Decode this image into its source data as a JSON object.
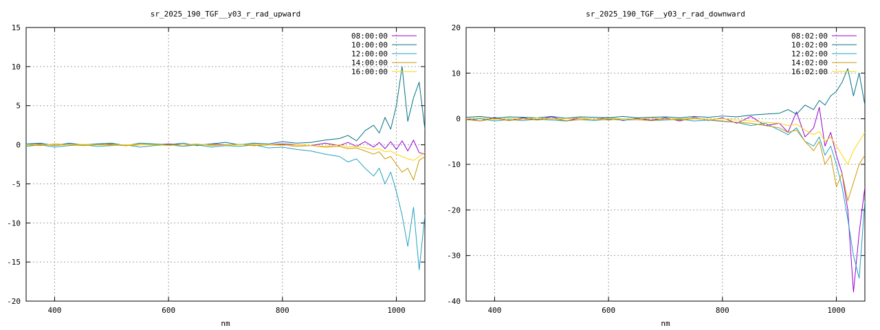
{
  "chart_data": [
    {
      "type": "line",
      "title": "sr_2025_190_TGF__y03_r_rad_upward",
      "xlabel": "nm",
      "ylabel": "",
      "xlim": [
        350,
        1050
      ],
      "ylim": [
        -20,
        15
      ],
      "xticks": [
        400,
        600,
        800,
        1000
      ],
      "yticks": [
        -20,
        -15,
        -10,
        -5,
        0,
        5,
        10,
        15
      ],
      "grid": true,
      "legend_position": "top-right",
      "x": [
        350,
        375,
        400,
        425,
        450,
        475,
        500,
        525,
        550,
        575,
        600,
        625,
        650,
        675,
        700,
        725,
        750,
        775,
        800,
        825,
        850,
        875,
        900,
        915,
        930,
        945,
        960,
        970,
        980,
        990,
        1000,
        1010,
        1020,
        1030,
        1040,
        1050
      ],
      "series": [
        {
          "name": "08:00:00",
          "color": "#9400d3",
          "values": [
            0,
            0.1,
            -0.1,
            0.05,
            0,
            0.1,
            0,
            -0.1,
            0.05,
            0,
            0.1,
            0,
            -0.05,
            0.1,
            0,
            0.05,
            -0.1,
            0,
            0.1,
            0,
            -0.1,
            0.2,
            -0.1,
            0.3,
            -0.2,
            0.4,
            -0.3,
            0.3,
            -0.5,
            0.4,
            -0.6,
            0.5,
            -0.8,
            0.6,
            -1.0,
            -1.2
          ]
        },
        {
          "name": "10:00:00",
          "color": "#007080",
          "values": [
            0.1,
            0.2,
            -0.1,
            0.2,
            0,
            0.1,
            0.2,
            -0.1,
            0.2,
            0.1,
            0,
            0.2,
            -0.1,
            0.1,
            0.3,
            0,
            0.2,
            0.1,
            0.4,
            0.2,
            0.3,
            0.6,
            0.8,
            1.2,
            0.5,
            1.8,
            2.5,
            1.5,
            3.5,
            2.0,
            5.0,
            10.0,
            3.0,
            6.0,
            8.0,
            2.0
          ]
        },
        {
          "name": "12:00:00",
          "color": "#20a0c0",
          "values": [
            -0.2,
            0,
            -0.3,
            -0.1,
            0,
            -0.2,
            -0.1,
            0,
            -0.3,
            -0.1,
            0,
            -0.2,
            0,
            -0.3,
            -0.1,
            -0.2,
            0,
            -0.4,
            -0.3,
            -0.6,
            -0.8,
            -1.2,
            -1.5,
            -2.2,
            -1.8,
            -3.0,
            -4.0,
            -3.0,
            -5.0,
            -3.5,
            -6.0,
            -9.0,
            -13.0,
            -8.0,
            -16.0,
            -9.0
          ]
        },
        {
          "name": "14:00:00",
          "color": "#c89600",
          "values": [
            0,
            -0.1,
            0.1,
            0,
            -0.1,
            0,
            0.1,
            -0.1,
            0,
            0.05,
            -0.1,
            0,
            0.1,
            -0.1,
            0,
            0.05,
            -0.1,
            0,
            0,
            -0.2,
            -0.1,
            -0.3,
            -0.2,
            -0.5,
            -0.4,
            -0.8,
            -1.2,
            -0.9,
            -1.8,
            -1.5,
            -2.5,
            -3.5,
            -3.0,
            -4.5,
            -2.0,
            -1.5
          ]
        },
        {
          "name": "16:00:00",
          "color": "#ffd400",
          "values": [
            0,
            0.05,
            -0.05,
            0,
            0.05,
            0,
            -0.05,
            0,
            0.05,
            0,
            -0.05,
            0,
            0.05,
            0,
            -0.05,
            0,
            0.05,
            0,
            -0.1,
            0,
            -0.1,
            -0.2,
            0,
            -0.3,
            -0.2,
            -0.4,
            -0.6,
            -0.5,
            -0.9,
            -0.8,
            -1.2,
            -1.5,
            -1.8,
            -2.0,
            -1.5,
            -1.0
          ]
        }
      ]
    },
    {
      "type": "line",
      "title": "sr_2025_190_TGF__y03_r_rad_downward",
      "xlabel": "nm",
      "ylabel": "",
      "xlim": [
        350,
        1050
      ],
      "ylim": [
        -40,
        20
      ],
      "xticks": [
        400,
        600,
        800,
        1000
      ],
      "yticks": [
        -40,
        -30,
        -20,
        -10,
        0,
        10,
        20
      ],
      "grid": true,
      "legend_position": "top-right",
      "x": [
        350,
        375,
        400,
        425,
        450,
        475,
        500,
        525,
        550,
        575,
        600,
        625,
        650,
        675,
        700,
        725,
        750,
        775,
        800,
        825,
        850,
        875,
        900,
        915,
        930,
        945,
        960,
        970,
        980,
        990,
        1000,
        1010,
        1020,
        1030,
        1040,
        1050
      ],
      "series": [
        {
          "name": "08:02:00",
          "color": "#9400d3",
          "values": [
            0,
            -0.5,
            0.3,
            -0.4,
            0.2,
            -0.3,
            0.4,
            -0.5,
            0.2,
            -0.2,
            0.3,
            -0.4,
            0.1,
            -0.3,
            0.2,
            -0.5,
            0.3,
            -0.4,
            0.2,
            -1.0,
            0.5,
            -1.5,
            -1.0,
            -3.0,
            1.5,
            -4.0,
            -2.0,
            2.5,
            -6.0,
            -3.0,
            -8.0,
            -12.0,
            -20.0,
            -38.0,
            -25.0,
            -15.0
          ]
        },
        {
          "name": "10:02:00",
          "color": "#007080",
          "values": [
            0.3,
            0.5,
            0.1,
            0.4,
            0.3,
            0.2,
            0.5,
            0.1,
            0.4,
            0.3,
            0.2,
            0.5,
            0.2,
            0.3,
            0.4,
            0.2,
            0.5,
            0.3,
            0.6,
            0.4,
            0.8,
            1.0,
            1.2,
            2.0,
            1.0,
            3.0,
            2.0,
            4.0,
            3.0,
            5.0,
            6.0,
            8.0,
            11.0,
            5.0,
            10.0,
            3.0
          ]
        },
        {
          "name": "12:02:00",
          "color": "#20a0c0",
          "values": [
            -0.3,
            0,
            -0.5,
            -0.2,
            -0.4,
            -0.1,
            -0.3,
            -0.5,
            -0.2,
            -0.4,
            -0.1,
            -0.3,
            -0.2,
            -0.4,
            -0.3,
            -0.1,
            -0.5,
            -0.3,
            -0.6,
            -0.8,
            -1.5,
            -1.0,
            -2.5,
            -3.5,
            -2.0,
            -5.0,
            -6.0,
            -4.0,
            -8.0,
            -6.0,
            -10.0,
            -15.0,
            -22.0,
            -30.0,
            -35.0,
            -18.0
          ]
        },
        {
          "name": "14:02:00",
          "color": "#c89600",
          "values": [
            -0.2,
            -0.5,
            0,
            -0.4,
            -0.1,
            -0.3,
            0,
            -0.4,
            -0.2,
            -0.1,
            -0.3,
            0,
            -0.2,
            -0.4,
            -0.1,
            -0.3,
            0,
            -0.2,
            -0.5,
            -0.8,
            -1.0,
            -1.5,
            -2.0,
            -3.0,
            -2.5,
            -5.0,
            -7.0,
            -5.0,
            -10.0,
            -8.0,
            -15.0,
            -12.0,
            -18.0,
            -14.0,
            -10.0,
            -8.0
          ]
        },
        {
          "name": "16:02:00",
          "color": "#ffd400",
          "values": [
            0,
            0.2,
            -0.2,
            0.1,
            -0.1,
            0.2,
            -0.1,
            0,
            0.2,
            -0.2,
            0.1,
            0,
            -0.1,
            0.2,
            -0.1,
            0,
            0.1,
            -0.2,
            0,
            -0.3,
            -0.5,
            -0.8,
            -1.0,
            -1.5,
            -1.2,
            -2.5,
            -3.5,
            -2.8,
            -5.0,
            -4.0,
            -6.0,
            -8.0,
            -10.0,
            -7.0,
            -5.0,
            -3.0
          ]
        }
      ]
    }
  ]
}
